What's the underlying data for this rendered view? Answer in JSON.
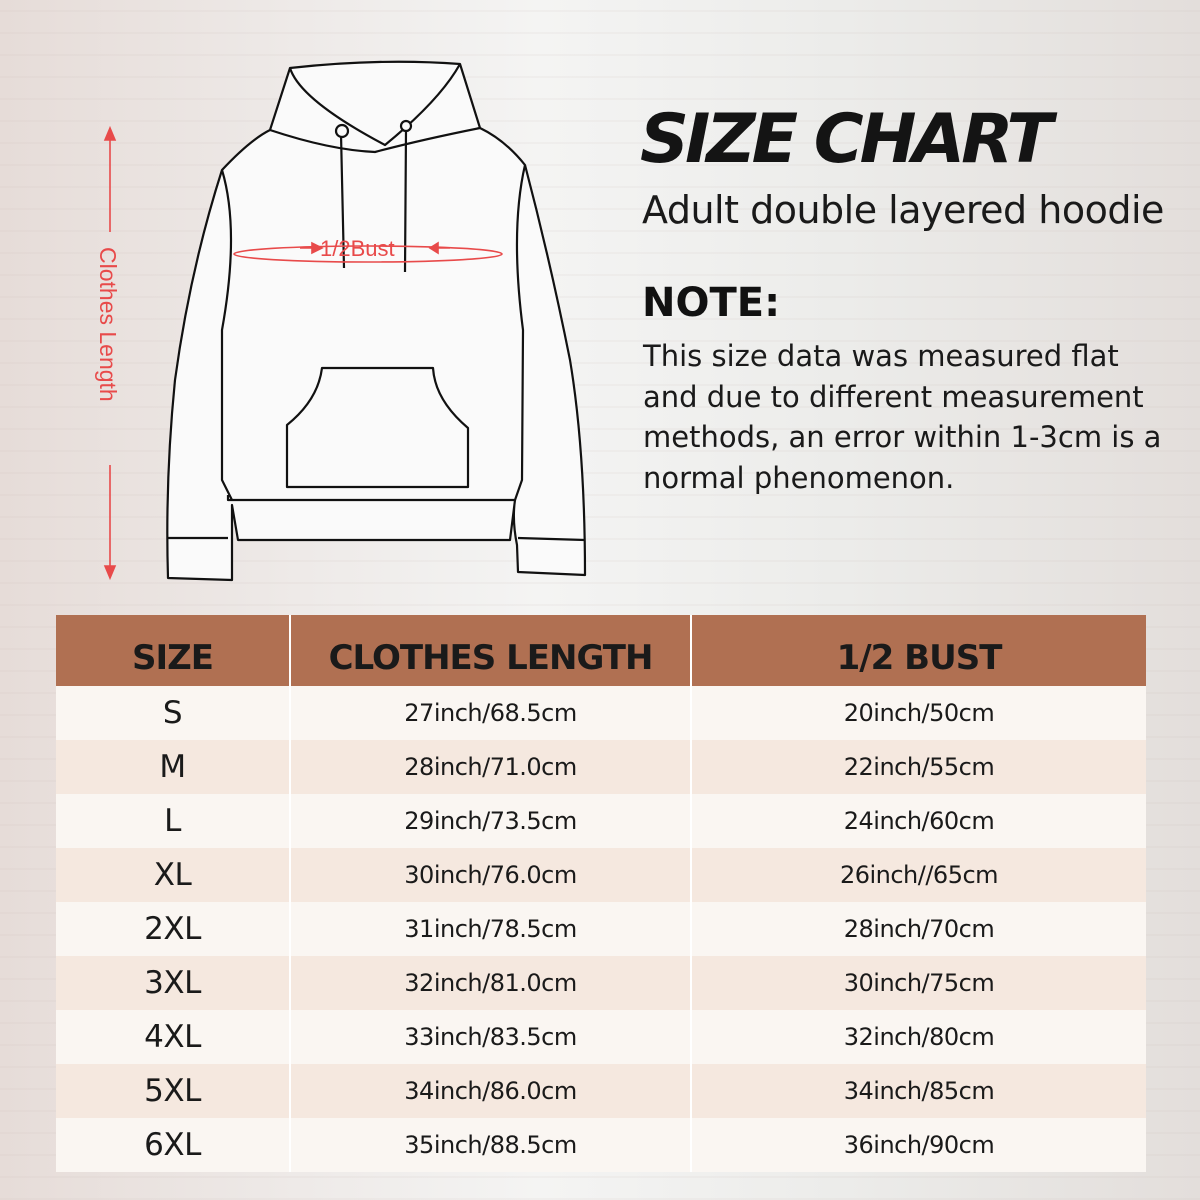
{
  "title": "SIZE CHART",
  "subtitle": "Adult double layered hoodie",
  "note_heading": "NOTE:",
  "note_text": "This size data was measured flat and due to different measurement methods, an error within 1-3cm is a normal phenomenon.",
  "diagram": {
    "length_label": "Clothes Length",
    "bust_label": "1/2Bust",
    "accent_color": "#e84a4a"
  },
  "table": {
    "header_color": "#b07052",
    "headers": [
      "SIZE",
      "CLOTHES LENGTH",
      "1/2 BUST"
    ],
    "rows": [
      [
        "S",
        "27inch/68.5cm",
        "20inch/50cm"
      ],
      [
        "M",
        "28inch/71.0cm",
        "22inch/55cm"
      ],
      [
        "L",
        "29inch/73.5cm",
        "24inch/60cm"
      ],
      [
        "XL",
        "30inch/76.0cm",
        "26inch//65cm"
      ],
      [
        "2XL",
        "31inch/78.5cm",
        "28inch/70cm"
      ],
      [
        "3XL",
        "32inch/81.0cm",
        "30inch/75cm"
      ],
      [
        "4XL",
        "33inch/83.5cm",
        "32inch/80cm"
      ],
      [
        "5XL",
        "34inch/86.0cm",
        "34inch/85cm"
      ],
      [
        "6XL",
        "35inch/88.5cm",
        "36inch/90cm"
      ]
    ]
  }
}
